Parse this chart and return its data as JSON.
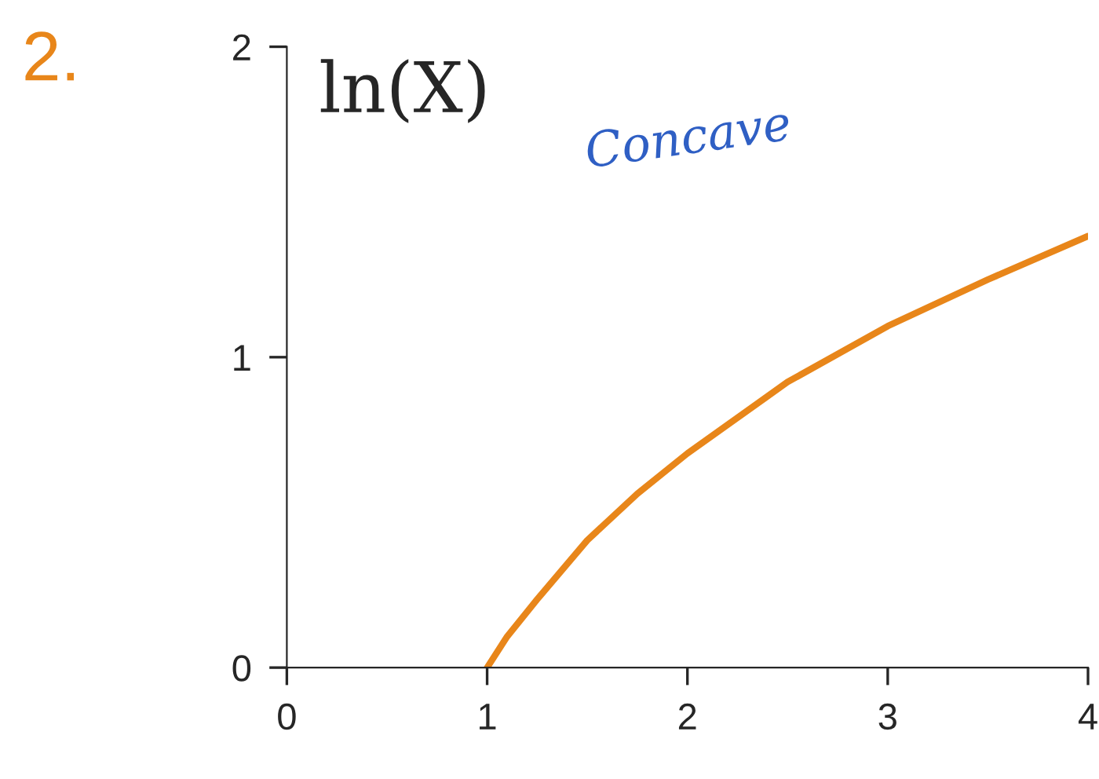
{
  "chart_data": {
    "type": "line",
    "title": "ln(X)",
    "annotations": [
      "2.",
      "Concave"
    ],
    "x": [
      1,
      1.1,
      1.25,
      1.5,
      1.75,
      2,
      2.5,
      3,
      3.5,
      4
    ],
    "series": [
      {
        "color": "#e8861a",
        "values": [
          0,
          0.1,
          0.22,
          0.41,
          0.56,
          0.69,
          0.92,
          1.1,
          1.25,
          1.39
        ]
      }
    ],
    "xlim": [
      0,
      4
    ],
    "xticks": [
      0,
      1,
      2,
      3,
      4
    ],
    "ylim": [
      0,
      2
    ],
    "yticks": [
      0,
      1,
      2
    ],
    "grid": false,
    "legend": false,
    "marker": "none",
    "line_style": "solid"
  }
}
